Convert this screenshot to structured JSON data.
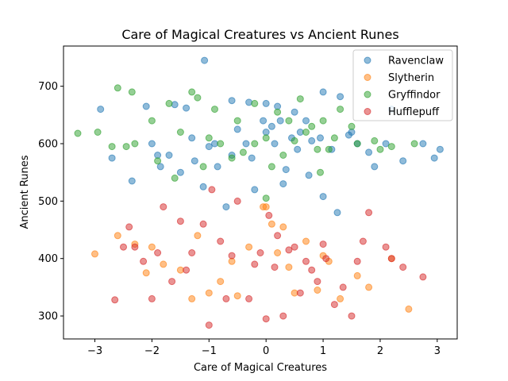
{
  "chart_data": {
    "type": "scatter",
    "title": "Care of Magical Creatures vs Ancient Runes",
    "xlabel": "Care of Magical Creatures",
    "ylabel": "Ancient Runes",
    "xlim": [
      -3.55,
      3.35
    ],
    "ylim": [
      260,
      770
    ],
    "xticks": [
      -3,
      -2,
      -1,
      0,
      1,
      2,
      3
    ],
    "yticks": [
      300,
      400,
      500,
      600,
      700
    ],
    "grid": false,
    "legend_position": "top-right",
    "series": [
      {
        "name": "Ravenclaw",
        "color": "#1f77b4",
        "x": [
          -1.08,
          -2.9,
          -2.1,
          -1.6,
          -1.4,
          -0.6,
          -0.3,
          0.0,
          0.2,
          0.5,
          0.7,
          1.0,
          1.3,
          2.2,
          2.75,
          3.05,
          2.95,
          1.5,
          1.25,
          1.0,
          0.3,
          -0.2,
          -0.7,
          -1.1,
          -1.5,
          -2.0,
          -2.7,
          -2.35,
          -1.85,
          1.8,
          2.4,
          0.95,
          -0.35,
          0.1,
          0.6,
          -0.9,
          -1.25,
          1.15,
          -0.05,
          0.45,
          -1.9,
          -1.0,
          -0.5,
          0.25,
          0.8,
          1.45,
          1.9,
          2.1,
          -1.3,
          0.0,
          -0.6,
          0.15,
          0.55,
          -0.25,
          1.6,
          -1.7,
          -0.85,
          0.35,
          0.75
        ],
        "y": [
          745,
          660,
          665,
          668,
          662,
          675,
          672,
          670,
          665,
          655,
          640,
          690,
          682,
          660,
          600,
          590,
          575,
          620,
          480,
          508,
          530,
          520,
          490,
          525,
          550,
          600,
          575,
          535,
          560,
          585,
          570,
          610,
          600,
          630,
          620,
          600,
          570,
          590,
          640,
          610,
          580,
          595,
          625,
          640,
          605,
          615,
          560,
          600,
          610,
          620,
          580,
          600,
          590,
          575,
          600,
          580,
          560,
          555,
          545
        ]
      },
      {
        "name": "Slytherin",
        "color": "#ff7f0e",
        "x": [
          -3.0,
          -2.6,
          -2.3,
          -2.0,
          -1.8,
          -1.3,
          -1.0,
          -0.5,
          0.0,
          0.3,
          0.9,
          1.3,
          1.8,
          2.2,
          2.5,
          -0.05,
          0.1,
          -1.5,
          -0.8,
          0.5,
          1.1,
          -2.1,
          -1.2,
          0.7,
          1.6,
          -0.3,
          0.2,
          -0.6,
          0.4,
          1.0
        ],
        "y": [
          408,
          440,
          425,
          420,
          390,
          330,
          340,
          335,
          490,
          455,
          345,
          330,
          350,
          400,
          312,
          490,
          460,
          380,
          360,
          340,
          395,
          375,
          440,
          430,
          370,
          420,
          410,
          395,
          385,
          405
        ]
      },
      {
        "name": "Gryffindor",
        "color": "#2ca02c",
        "x": [
          -3.3,
          -2.95,
          -2.6,
          -2.35,
          -2.0,
          -1.7,
          -1.3,
          -1.2,
          -0.9,
          -0.5,
          -0.2,
          0.2,
          0.6,
          1.0,
          1.3,
          1.6,
          1.9,
          2.2,
          2.6,
          -2.7,
          -2.3,
          -1.5,
          -0.8,
          0.0,
          0.4,
          0.8,
          1.2,
          -1.1,
          -0.4,
          0.3,
          0.9,
          1.5,
          -1.9,
          -0.6,
          0.1,
          0.7,
          -1.0,
          -0.2,
          0.5,
          1.1,
          -1.6,
          0.0,
          0.95,
          -2.45,
          2.0
        ],
        "y": [
          618,
          620,
          697,
          690,
          640,
          670,
          690,
          680,
          660,
          640,
          670,
          655,
          678,
          640,
          660,
          600,
          605,
          595,
          600,
          595,
          600,
          620,
          600,
          610,
          640,
          630,
          610,
          560,
          585,
          580,
          590,
          630,
          570,
          575,
          560,
          620,
          610,
          600,
          605,
          590,
          540,
          505,
          550,
          595,
          590
        ]
      },
      {
        "name": "Hufflepuff",
        "color": "#d62728",
        "x": [
          -2.65,
          -2.4,
          -2.3,
          -2.0,
          -1.8,
          -1.5,
          -1.3,
          -1.0,
          -0.7,
          -0.3,
          0.0,
          0.3,
          0.6,
          0.9,
          1.2,
          1.5,
          1.8,
          2.1,
          2.4,
          2.75,
          -0.95,
          0.05,
          -1.65,
          1.7,
          -2.15,
          -1.1,
          -0.5,
          0.2,
          0.8,
          1.35,
          -1.9,
          -0.2,
          0.5,
          1.05,
          -0.8,
          0.4,
          1.6,
          -1.4,
          -0.6,
          0.15,
          1.0,
          2.2,
          -2.5,
          -0.1,
          0.7
        ],
        "y": [
          328,
          455,
          420,
          330,
          490,
          465,
          410,
          284,
          330,
          330,
          295,
          300,
          340,
          360,
          320,
          300,
          480,
          420,
          385,
          368,
          520,
          475,
          360,
          430,
          395,
          460,
          500,
          440,
          380,
          350,
          410,
          390,
          420,
          400,
          430,
          415,
          395,
          380,
          405,
          385,
          425,
          400,
          420,
          410,
          395
        ]
      }
    ]
  }
}
